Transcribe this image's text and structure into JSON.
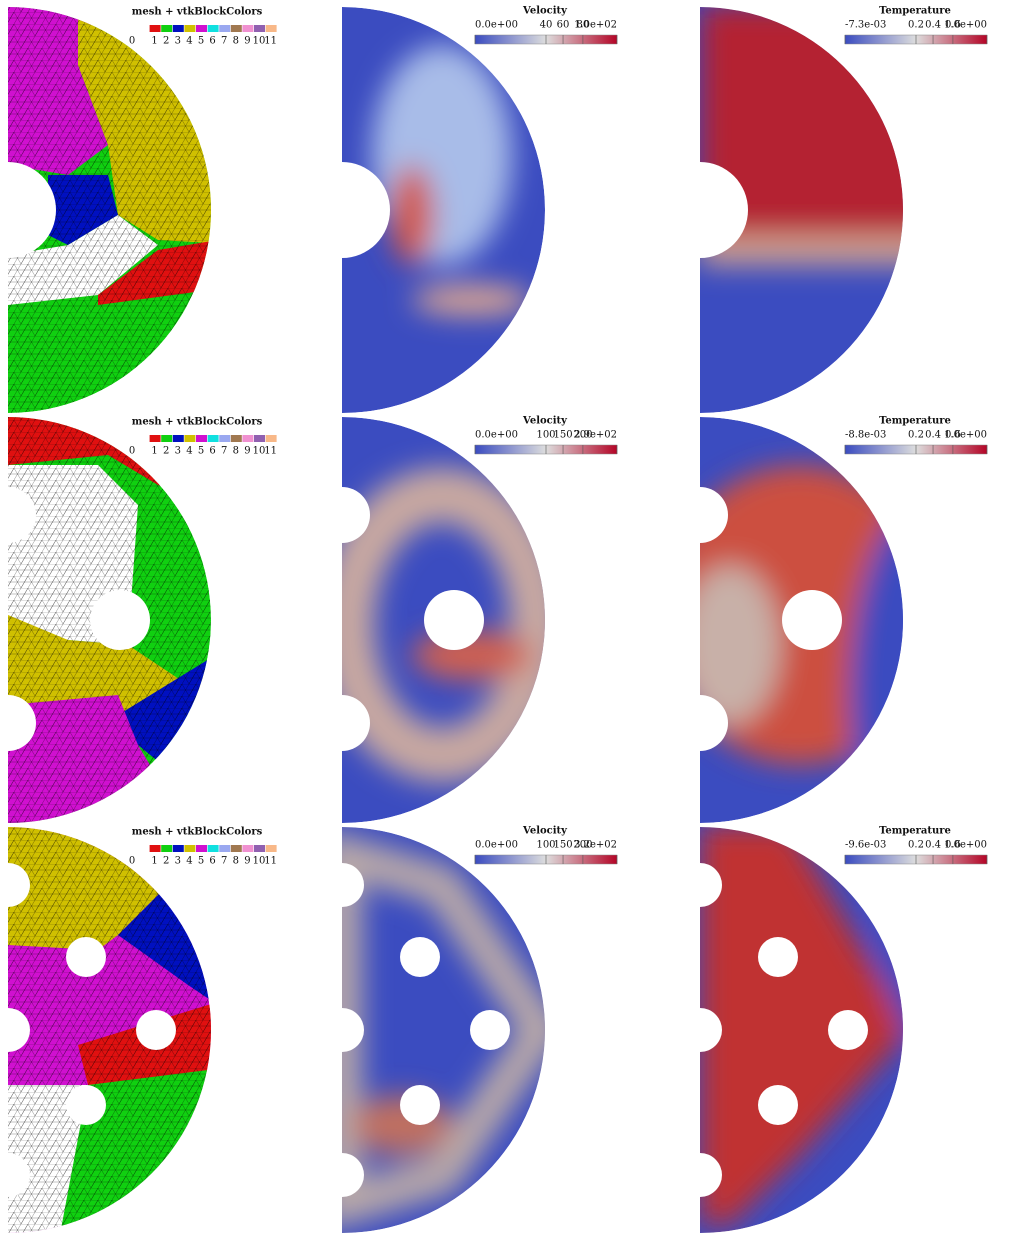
{
  "block_colors": [
    "#ffffff",
    "#e01010",
    "#10d010",
    "#0010c0",
    "#d0c000",
    "#d010d0",
    "#10e0e0",
    "#9aa8f0",
    "#a07850",
    "#f090d0",
    "#9060b0",
    "#f8b888"
  ],
  "rows": [
    {
      "mesh": {
        "title": "mesh + vtkBlockColors",
        "labels": [
          "0",
          "1",
          "2",
          "3",
          "4",
          "5",
          "6",
          "7",
          "8",
          "9",
          "10",
          "11"
        ]
      },
      "velocity": {
        "title": "Velocity",
        "ticks": [
          "0.0e+00",
          "40",
          "60",
          "80",
          "1.0e+02"
        ]
      },
      "temperature": {
        "title": "Temperature",
        "ticks": [
          "-7.3e-03",
          "0.2",
          "0.4",
          "0.6",
          "1.0e+00"
        ]
      }
    },
    {
      "mesh": {
        "title": "mesh + vtkBlockColors",
        "labels": [
          "0",
          "1",
          "2",
          "3",
          "4",
          "5",
          "6",
          "7",
          "8",
          "9",
          "10",
          "11"
        ]
      },
      "velocity": {
        "title": "Velocity",
        "ticks": [
          "0.0e+00",
          "100",
          "150",
          "200",
          "2.9e+02"
        ]
      },
      "temperature": {
        "title": "Temperature",
        "ticks": [
          "-8.8e-03",
          "0.2",
          "0.4",
          "0.6",
          "1.0e+00"
        ]
      }
    },
    {
      "mesh": {
        "title": "mesh + vtkBlockColors",
        "labels": [
          "0",
          "1",
          "2",
          "3",
          "4",
          "5",
          "6",
          "7",
          "8",
          "9",
          "10",
          "11"
        ]
      },
      "velocity": {
        "title": "Velocity",
        "ticks": [
          "0.0e+00",
          "100",
          "150",
          "200",
          "3.2e+02"
        ]
      },
      "temperature": {
        "title": "Temperature",
        "ticks": [
          "-9.6e-03",
          "0.2",
          "0.4",
          "0.6",
          "1.0e+00"
        ]
      }
    }
  ]
}
